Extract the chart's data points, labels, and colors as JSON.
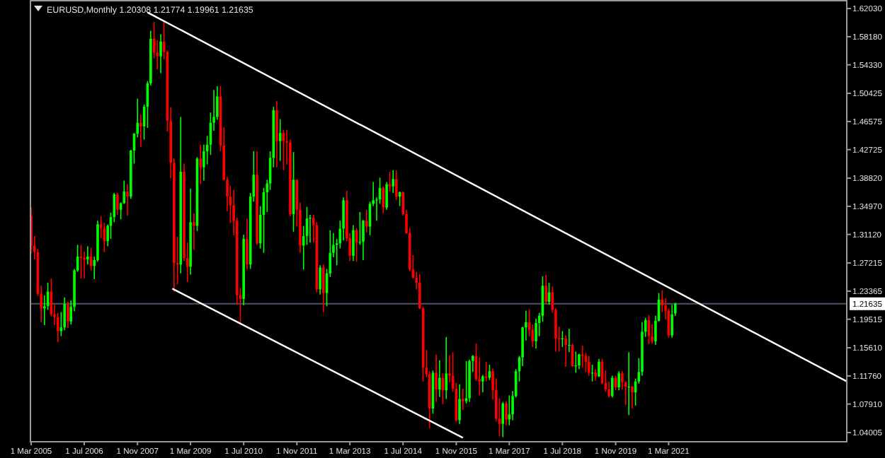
{
  "chart_data": {
    "type": "candlestick",
    "title": "EURUSD,Monthly  1.20308 1.21774 1.19961 1.21635",
    "x": [
      "2005-03",
      "2005-04",
      "2005-05",
      "2005-06",
      "2005-07",
      "2005-08",
      "2005-09",
      "2005-10",
      "2005-11",
      "2005-12",
      "2006-01",
      "2006-02",
      "2006-03",
      "2006-04",
      "2006-05",
      "2006-06",
      "2006-07",
      "2006-08",
      "2006-09",
      "2006-10",
      "2006-11",
      "2006-12",
      "2007-01",
      "2007-02",
      "2007-03",
      "2007-04",
      "2007-05",
      "2007-06",
      "2007-07",
      "2007-08",
      "2007-09",
      "2007-10",
      "2007-11",
      "2007-12",
      "2008-01",
      "2008-02",
      "2008-03",
      "2008-04",
      "2008-05",
      "2008-06",
      "2008-07",
      "2008-08",
      "2008-09",
      "2008-10",
      "2008-11",
      "2008-12",
      "2009-01",
      "2009-02",
      "2009-03",
      "2009-04",
      "2009-05",
      "2009-06",
      "2009-07",
      "2009-08",
      "2009-09",
      "2009-10",
      "2009-11",
      "2009-12",
      "2010-01",
      "2010-02",
      "2010-03",
      "2010-04",
      "2010-05",
      "2010-06",
      "2010-07",
      "2010-08",
      "2010-09",
      "2010-10",
      "2010-11",
      "2010-12",
      "2011-01",
      "2011-02",
      "2011-03",
      "2011-04",
      "2011-05",
      "2011-06",
      "2011-07",
      "2011-08",
      "2011-09",
      "2011-10",
      "2011-11",
      "2011-12",
      "2012-01",
      "2012-02",
      "2012-03",
      "2012-04",
      "2012-05",
      "2012-06",
      "2012-07",
      "2012-08",
      "2012-09",
      "2012-10",
      "2012-11",
      "2012-12",
      "2013-01",
      "2013-02",
      "2013-03",
      "2013-04",
      "2013-05",
      "2013-06",
      "2013-07",
      "2013-08",
      "2013-09",
      "2013-10",
      "2013-11",
      "2013-12",
      "2014-01",
      "2014-02",
      "2014-03",
      "2014-04",
      "2014-05",
      "2014-06",
      "2014-07",
      "2014-08",
      "2014-09",
      "2014-10",
      "2014-11",
      "2014-12",
      "2015-01",
      "2015-02",
      "2015-03",
      "2015-04",
      "2015-05",
      "2015-06",
      "2015-07",
      "2015-08",
      "2015-09",
      "2015-10",
      "2015-11",
      "2015-12",
      "2016-01",
      "2016-02",
      "2016-03",
      "2016-04",
      "2016-05",
      "2016-06",
      "2016-07",
      "2016-08",
      "2016-09",
      "2016-10",
      "2016-11",
      "2016-12",
      "2017-01",
      "2017-02",
      "2017-03",
      "2017-04",
      "2017-05",
      "2017-06",
      "2017-07",
      "2017-08",
      "2017-09",
      "2017-10",
      "2017-11",
      "2017-12",
      "2018-01",
      "2018-02",
      "2018-03",
      "2018-04",
      "2018-05",
      "2018-06",
      "2018-07",
      "2018-08",
      "2018-09",
      "2018-10",
      "2018-11",
      "2018-12",
      "2019-01",
      "2019-02",
      "2019-03",
      "2019-04",
      "2019-05",
      "2019-06",
      "2019-07",
      "2019-08",
      "2019-09",
      "2019-10",
      "2019-11",
      "2019-12",
      "2020-01",
      "2020-02",
      "2020-03",
      "2020-04",
      "2020-05",
      "2020-06",
      "2020-07",
      "2020-08",
      "2020-09",
      "2020-10",
      "2020-11",
      "2020-12",
      "2021-01",
      "2021-02",
      "2021-03",
      "2021-04",
      "2021-05"
    ],
    "ohlc": [
      [
        1.337,
        1.348,
        1.285,
        1.296
      ],
      [
        1.296,
        1.309,
        1.277,
        1.287
      ],
      [
        1.287,
        1.291,
        1.227,
        1.23
      ],
      [
        1.23,
        1.241,
        1.191,
        1.21
      ],
      [
        1.21,
        1.228,
        1.187,
        1.213
      ],
      [
        1.213,
        1.245,
        1.208,
        1.233
      ],
      [
        1.233,
        1.251,
        1.199,
        1.202
      ],
      [
        1.202,
        1.215,
        1.187,
        1.198
      ],
      [
        1.198,
        1.204,
        1.164,
        1.179
      ],
      [
        1.179,
        1.205,
        1.172,
        1.184
      ],
      [
        1.184,
        1.225,
        1.18,
        1.216
      ],
      [
        1.216,
        1.219,
        1.183,
        1.192
      ],
      [
        1.192,
        1.221,
        1.188,
        1.212
      ],
      [
        1.212,
        1.264,
        1.206,
        1.262
      ],
      [
        1.262,
        1.297,
        1.26,
        1.281
      ],
      [
        1.281,
        1.297,
        1.251,
        1.279
      ],
      [
        1.279,
        1.288,
        1.251,
        1.277
      ],
      [
        1.277,
        1.295,
        1.27,
        1.281
      ],
      [
        1.281,
        1.293,
        1.262,
        1.268
      ],
      [
        1.268,
        1.281,
        1.25,
        1.276
      ],
      [
        1.276,
        1.33,
        1.274,
        1.325
      ],
      [
        1.325,
        1.336,
        1.306,
        1.32
      ],
      [
        1.32,
        1.327,
        1.287,
        1.302
      ],
      [
        1.302,
        1.325,
        1.295,
        1.323
      ],
      [
        1.323,
        1.341,
        1.305,
        1.335
      ],
      [
        1.335,
        1.368,
        1.328,
        1.366
      ],
      [
        1.366,
        1.368,
        1.338,
        1.345
      ],
      [
        1.345,
        1.355,
        1.332,
        1.354
      ],
      [
        1.354,
        1.385,
        1.353,
        1.37
      ],
      [
        1.37,
        1.38,
        1.337,
        1.363
      ],
      [
        1.363,
        1.427,
        1.36,
        1.426
      ],
      [
        1.426,
        1.45,
        1.408,
        1.449
      ],
      [
        1.449,
        1.497,
        1.444,
        1.464
      ],
      [
        1.464,
        1.475,
        1.431,
        1.459
      ],
      [
        1.459,
        1.489,
        1.441,
        1.486
      ],
      [
        1.486,
        1.521,
        1.457,
        1.518
      ],
      [
        1.518,
        1.59,
        1.515,
        1.579
      ],
      [
        1.579,
        1.602,
        1.552,
        1.56
      ],
      [
        1.56,
        1.577,
        1.537,
        1.555
      ],
      [
        1.555,
        1.585,
        1.532,
        1.575
      ],
      [
        1.575,
        1.604,
        1.551,
        1.561
      ],
      [
        1.561,
        1.563,
        1.452,
        1.467
      ],
      [
        1.467,
        1.485,
        1.388,
        1.409
      ],
      [
        1.409,
        1.415,
        1.233,
        1.272
      ],
      [
        1.272,
        1.308,
        1.243,
        1.27
      ],
      [
        1.27,
        1.472,
        1.258,
        1.397
      ],
      [
        1.397,
        1.408,
        1.275,
        1.279
      ],
      [
        1.279,
        1.3,
        1.246,
        1.267
      ],
      [
        1.267,
        1.374,
        1.256,
        1.328
      ],
      [
        1.328,
        1.34,
        1.29,
        1.323
      ],
      [
        1.323,
        1.417,
        1.316,
        1.415
      ],
      [
        1.415,
        1.434,
        1.38,
        1.403
      ],
      [
        1.403,
        1.434,
        1.385,
        1.425
      ],
      [
        1.425,
        1.446,
        1.407,
        1.434
      ],
      [
        1.434,
        1.478,
        1.42,
        1.464
      ],
      [
        1.464,
        1.509,
        1.453,
        1.472
      ],
      [
        1.472,
        1.514,
        1.468,
        1.5
      ],
      [
        1.5,
        1.514,
        1.425,
        1.433
      ],
      [
        1.433,
        1.458,
        1.386,
        1.386
      ],
      [
        1.386,
        1.39,
        1.343,
        1.363
      ],
      [
        1.363,
        1.378,
        1.327,
        1.351
      ],
      [
        1.351,
        1.372,
        1.31,
        1.33
      ],
      [
        1.33,
        1.334,
        1.215,
        1.228
      ],
      [
        1.228,
        1.238,
        1.188,
        1.223
      ],
      [
        1.223,
        1.311,
        1.214,
        1.305
      ],
      [
        1.305,
        1.333,
        1.263,
        1.27
      ],
      [
        1.27,
        1.368,
        1.264,
        1.363
      ],
      [
        1.363,
        1.425,
        1.356,
        1.393
      ],
      [
        1.393,
        1.425,
        1.297,
        1.299
      ],
      [
        1.299,
        1.35,
        1.292,
        1.338
      ],
      [
        1.338,
        1.375,
        1.286,
        1.369
      ],
      [
        1.369,
        1.386,
        1.342,
        1.381
      ],
      [
        1.381,
        1.425,
        1.372,
        1.416
      ],
      [
        1.416,
        1.486,
        1.403,
        1.481
      ],
      [
        1.481,
        1.494,
        1.403,
        1.439
      ],
      [
        1.439,
        1.469,
        1.412,
        1.45
      ],
      [
        1.45,
        1.454,
        1.399,
        1.439
      ],
      [
        1.439,
        1.454,
        1.407,
        1.437
      ],
      [
        1.437,
        1.441,
        1.336,
        1.339
      ],
      [
        1.339,
        1.424,
        1.315,
        1.386
      ],
      [
        1.386,
        1.387,
        1.322,
        1.345
      ],
      [
        1.345,
        1.355,
        1.286,
        1.296
      ],
      [
        1.296,
        1.323,
        1.263,
        1.309
      ],
      [
        1.309,
        1.349,
        1.297,
        1.333
      ],
      [
        1.333,
        1.338,
        1.3,
        1.334
      ],
      [
        1.334,
        1.338,
        1.3,
        1.324
      ],
      [
        1.324,
        1.328,
        1.232,
        1.236
      ],
      [
        1.236,
        1.269,
        1.229,
        1.266
      ],
      [
        1.266,
        1.27,
        1.205,
        1.231
      ],
      [
        1.231,
        1.264,
        1.213,
        1.258
      ],
      [
        1.258,
        1.317,
        1.253,
        1.286
      ],
      [
        1.286,
        1.313,
        1.28,
        1.297
      ],
      [
        1.297,
        1.305,
        1.269,
        1.299
      ],
      [
        1.299,
        1.33,
        1.292,
        1.319
      ],
      [
        1.319,
        1.362,
        1.303,
        1.358
      ],
      [
        1.358,
        1.371,
        1.302,
        1.306
      ],
      [
        1.306,
        1.313,
        1.275,
        1.282
      ],
      [
        1.282,
        1.324,
        1.275,
        1.317
      ],
      [
        1.317,
        1.32,
        1.274,
        1.3
      ],
      [
        1.3,
        1.342,
        1.297,
        1.301
      ],
      [
        1.301,
        1.331,
        1.276,
        1.33
      ],
      [
        1.33,
        1.345,
        1.314,
        1.322
      ],
      [
        1.322,
        1.356,
        1.31,
        1.353
      ],
      [
        1.353,
        1.383,
        1.35,
        1.358
      ],
      [
        1.358,
        1.362,
        1.33,
        1.359
      ],
      [
        1.359,
        1.389,
        1.353,
        1.375
      ],
      [
        1.375,
        1.377,
        1.34,
        1.348
      ],
      [
        1.348,
        1.383,
        1.345,
        1.38
      ],
      [
        1.38,
        1.397,
        1.37,
        1.377
      ],
      [
        1.377,
        1.399,
        1.368,
        1.387
      ],
      [
        1.387,
        1.399,
        1.358,
        1.363
      ],
      [
        1.363,
        1.37,
        1.35,
        1.369
      ],
      [
        1.369,
        1.37,
        1.337,
        1.339
      ],
      [
        1.339,
        1.345,
        1.312,
        1.313
      ],
      [
        1.313,
        1.32,
        1.261,
        1.263
      ],
      [
        1.263,
        1.283,
        1.251,
        1.252
      ],
      [
        1.252,
        1.26,
        1.236,
        1.245
      ],
      [
        1.245,
        1.257,
        1.209,
        1.21
      ],
      [
        1.21,
        1.212,
        1.11,
        1.129
      ],
      [
        1.129,
        1.153,
        1.116,
        1.12
      ],
      [
        1.12,
        1.124,
        1.046,
        1.073
      ],
      [
        1.073,
        1.125,
        1.066,
        1.122
      ],
      [
        1.122,
        1.147,
        1.082,
        1.099
      ],
      [
        1.099,
        1.139,
        1.089,
        1.115
      ],
      [
        1.115,
        1.121,
        1.079,
        1.098
      ],
      [
        1.098,
        1.171,
        1.086,
        1.121
      ],
      [
        1.121,
        1.146,
        1.109,
        1.118
      ],
      [
        1.118,
        1.15,
        1.096,
        1.1
      ],
      [
        1.1,
        1.108,
        1.055,
        1.057
      ],
      [
        1.057,
        1.106,
        1.052,
        1.086
      ],
      [
        1.086,
        1.1,
        1.071,
        1.083
      ],
      [
        1.083,
        1.138,
        1.08,
        1.087
      ],
      [
        1.087,
        1.14,
        1.082,
        1.138
      ],
      [
        1.138,
        1.146,
        1.123,
        1.145
      ],
      [
        1.145,
        1.162,
        1.111,
        1.113
      ],
      [
        1.113,
        1.143,
        1.091,
        1.11
      ],
      [
        1.11,
        1.119,
        1.095,
        1.117
      ],
      [
        1.117,
        1.137,
        1.11,
        1.115
      ],
      [
        1.115,
        1.133,
        1.112,
        1.124
      ],
      [
        1.124,
        1.128,
        1.085,
        1.098
      ],
      [
        1.098,
        1.114,
        1.055,
        1.059
      ],
      [
        1.059,
        1.087,
        1.035,
        1.052
      ],
      [
        1.052,
        1.082,
        1.034,
        1.08
      ],
      [
        1.08,
        1.083,
        1.05,
        1.058
      ],
      [
        1.058,
        1.091,
        1.05,
        1.065
      ],
      [
        1.065,
        1.097,
        1.057,
        1.09
      ],
      [
        1.09,
        1.127,
        1.088,
        1.124
      ],
      [
        1.124,
        1.145,
        1.11,
        1.143
      ],
      [
        1.143,
        1.185,
        1.131,
        1.184
      ],
      [
        1.184,
        1.207,
        1.166,
        1.191
      ],
      [
        1.191,
        1.209,
        1.172,
        1.181
      ],
      [
        1.181,
        1.188,
        1.157,
        1.165
      ],
      [
        1.165,
        1.196,
        1.155,
        1.19
      ],
      [
        1.19,
        1.204,
        1.172,
        1.2
      ],
      [
        1.2,
        1.254,
        1.192,
        1.241
      ],
      [
        1.241,
        1.256,
        1.216,
        1.219
      ],
      [
        1.219,
        1.245,
        1.215,
        1.232
      ],
      [
        1.232,
        1.24,
        1.204,
        1.208
      ],
      [
        1.208,
        1.21,
        1.151,
        1.169
      ],
      [
        1.169,
        1.185,
        1.151,
        1.168
      ],
      [
        1.168,
        1.179,
        1.157,
        1.169
      ],
      [
        1.169,
        1.173,
        1.13,
        1.16
      ],
      [
        1.16,
        1.182,
        1.15,
        1.16
      ],
      [
        1.16,
        1.162,
        1.13,
        1.131
      ],
      [
        1.131,
        1.151,
        1.122,
        1.132
      ],
      [
        1.132,
        1.148,
        1.127,
        1.147
      ],
      [
        1.147,
        1.159,
        1.129,
        1.145
      ],
      [
        1.145,
        1.149,
        1.123,
        1.137
      ],
      [
        1.137,
        1.145,
        1.118,
        1.122
      ],
      [
        1.122,
        1.133,
        1.11,
        1.122
      ],
      [
        1.122,
        1.127,
        1.111,
        1.117
      ],
      [
        1.117,
        1.141,
        1.116,
        1.137
      ],
      [
        1.137,
        1.141,
        1.106,
        1.108
      ],
      [
        1.108,
        1.125,
        1.096,
        1.099
      ],
      [
        1.099,
        1.11,
        1.088,
        1.09
      ],
      [
        1.09,
        1.118,
        1.088,
        1.115
      ],
      [
        1.115,
        1.118,
        1.098,
        1.102
      ],
      [
        1.102,
        1.124,
        1.098,
        1.121
      ],
      [
        1.121,
        1.124,
        1.099,
        1.109
      ],
      [
        1.109,
        1.11,
        1.078,
        1.103
      ],
      [
        1.103,
        1.15,
        1.064,
        1.103
      ],
      [
        1.103,
        1.104,
        1.073,
        1.095
      ],
      [
        1.095,
        1.114,
        1.077,
        1.11
      ],
      [
        1.11,
        1.142,
        1.107,
        1.123
      ],
      [
        1.123,
        1.191,
        1.118,
        1.178
      ],
      [
        1.178,
        1.197,
        1.171,
        1.194
      ],
      [
        1.194,
        1.201,
        1.161,
        1.172
      ],
      [
        1.172,
        1.188,
        1.162,
        1.165
      ],
      [
        1.165,
        1.2,
        1.16,
        1.193
      ],
      [
        1.193,
        1.231,
        1.192,
        1.222
      ],
      [
        1.222,
        1.235,
        1.205,
        1.214
      ],
      [
        1.214,
        1.224,
        1.195,
        1.207
      ],
      [
        1.207,
        1.21,
        1.17,
        1.173
      ],
      [
        1.173,
        1.215,
        1.17,
        1.202
      ],
      [
        1.20308,
        1.21774,
        1.19961,
        1.21635
      ]
    ],
    "series": [
      {
        "type": "line",
        "color": "#ffffff",
        "x": [
          "2008-02-01",
          "2025-08-20"
        ],
        "values": [
          1.615,
          1.11
        ]
      },
      {
        "type": "line",
        "color": "#ffffff",
        "x": [
          "2008-09-15",
          "2016-01-01"
        ],
        "values": [
          1.237,
          1.033
        ]
      }
    ],
    "xlim": [
      "2005-03-01",
      "2025-08-20"
    ],
    "xticks": [
      {
        "value": "2005-03-01",
        "label": "1 Mar 2005"
      },
      {
        "value": "2006-07-01",
        "label": "1 Jul 2006"
      },
      {
        "value": "2007-11-01",
        "label": "1 Nov 2007"
      },
      {
        "value": "2009-03-01",
        "label": "1 Mar 2009"
      },
      {
        "value": "2010-07-01",
        "label": "1 Jul 2010"
      },
      {
        "value": "2011-11-01",
        "label": "1 Nov 2011"
      },
      {
        "value": "2013-03-01",
        "label": "1 Mar 2013"
      },
      {
        "value": "2014-07-01",
        "label": "1 Jul 2014"
      },
      {
        "value": "2015-11-01",
        "label": "1 Nov 2015"
      },
      {
        "value": "2017-03-01",
        "label": "1 Mar 2017"
      },
      {
        "value": "2018-07-01",
        "label": "1 Jul 2018"
      },
      {
        "value": "2019-11-01",
        "label": "1 Nov 2019"
      },
      {
        "value": "2021-03-01",
        "label": "1 Mar 2021"
      }
    ],
    "ylim": [
      1.0285,
      1.632
    ],
    "yticks": [
      {
        "value": 1.6203,
        "label": "1.62030"
      },
      {
        "value": 1.5818,
        "label": "1.58180"
      },
      {
        "value": 1.5433,
        "label": "1.54330"
      },
      1.50425,
      1.46575,
      1.42725,
      {
        "value": 1.3882,
        "label": "1.38820"
      },
      {
        "value": 1.3497,
        "label": "1.34970"
      },
      {
        "value": 1.3112,
        "label": "1.31120"
      },
      1.27215,
      1.23365,
      1.19515,
      {
        "value": 1.1561,
        "label": "1.15610"
      },
      {
        "value": 1.1176,
        "label": "1.11760"
      },
      {
        "value": 1.0791,
        "label": "1.07910"
      },
      1.04005
    ],
    "ref_lines": [
      {
        "axis": "y",
        "value": 1.21635,
        "label": "1.21635",
        "color": "#4a5368"
      }
    ]
  }
}
